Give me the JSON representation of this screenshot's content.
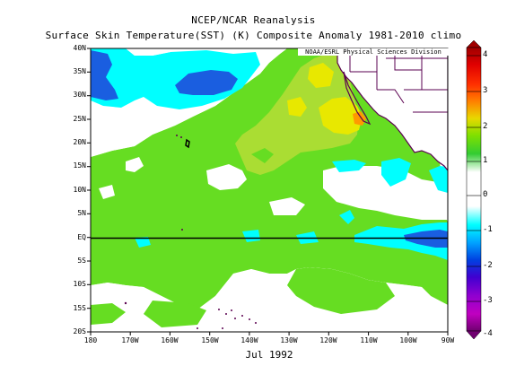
{
  "title_line1": "NCEP/NCAR Reanalysis",
  "title_line2": "Surface Skin Temperature(SST) (K) Composite Anomaly 1981-2010 climo",
  "credit": "NOAA/ESRL Physical Sciences Division",
  "date_label": "Jul 1992",
  "map": {
    "lon_range": [
      -180,
      -90
    ],
    "lat_range": [
      -20,
      40
    ],
    "lat_labels": [
      "40N",
      "35N",
      "30N",
      "25N",
      "20N",
      "15N",
      "10N",
      "5N",
      "EQ",
      "5S",
      "10S",
      "15S",
      "20S"
    ],
    "lon_labels": [
      "180",
      "170W",
      "160W",
      "150W",
      "140W",
      "130W",
      "120W",
      "110W",
      "100W",
      "90W"
    ],
    "equator_line": true
  },
  "colorbar": {
    "labels": [
      "4",
      "3",
      "2",
      "1",
      "0",
      "-1",
      "-2",
      "-3",
      "-4"
    ],
    "colors": [
      "#a00000",
      "#e00000",
      "#ff8000",
      "#e8d800",
      "#7fe000",
      "#33cc33",
      "#ffffff",
      "#00ffff",
      "#0080ff",
      "#0020e0",
      "#9000d0",
      "#c000c0",
      "#700070"
    ]
  },
  "anomaly_colors": {
    "light_green": "#66dd22",
    "yellow_green": "#aadd33",
    "yellow": "#e8e800",
    "orange": "#ff9900",
    "cyan": "#00ffff",
    "blue": "#1a5ee0",
    "land_outline": "#5a0050"
  }
}
